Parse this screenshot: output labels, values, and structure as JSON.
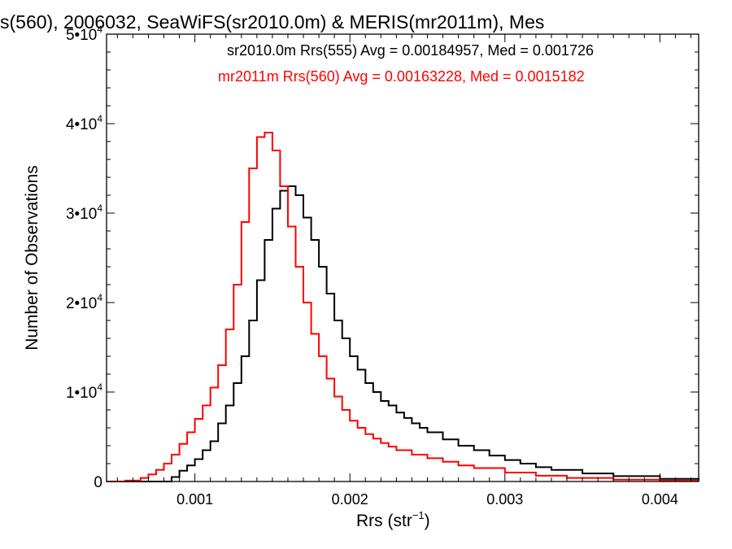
{
  "chart_data": {
    "type": "line",
    "step": true,
    "title": "s(560), 2006032, SeaWiFS(sr2010.0m) & MERIS(mr2011m), Mes",
    "xlabel": {
      "text": "Rrs (str",
      "sup": "−1",
      "close": ")"
    },
    "ylabel": "Number of Observations",
    "xlim": [
      0.00043,
      0.00425
    ],
    "ylim": [
      0,
      50000
    ],
    "x_ticks": [
      {
        "value": 0.001,
        "label": "0.001"
      },
      {
        "value": 0.002,
        "label": "0.002"
      },
      {
        "value": 0.003,
        "label": "0.003"
      },
      {
        "value": 0.004,
        "label": "0.004"
      }
    ],
    "y_ticks": [
      {
        "value": 0,
        "label": "0",
        "exp": ""
      },
      {
        "value": 10000,
        "label": "1•10",
        "exp": "4"
      },
      {
        "value": 20000,
        "label": "2•10",
        "exp": "4"
      },
      {
        "value": 30000,
        "label": "3•10",
        "exp": "4"
      },
      {
        "value": 40000,
        "label": "4•10",
        "exp": "4"
      },
      {
        "value": 50000,
        "label": "5•10",
        "exp": "4"
      }
    ],
    "legend": [
      {
        "text": "sr2010.0m Rrs(555) Avg = 0.00184957, Med = 0.001726",
        "color": "#000000"
      },
      {
        "text": "mr2011m Rrs(560) Avg = 0.00163228, Med = 0.0015182",
        "color": "#ff0000"
      }
    ],
    "series": [
      {
        "color": "#000000",
        "x": [
          0.00043,
          0.0006,
          0.00075,
          0.0008,
          0.00085,
          0.0009,
          0.00095,
          0.001,
          0.00105,
          0.0011,
          0.00115,
          0.0012,
          0.00125,
          0.0013,
          0.00135,
          0.0014,
          0.00145,
          0.0015,
          0.00155,
          0.0016,
          0.00165,
          0.0017,
          0.00175,
          0.0018,
          0.00185,
          0.0019,
          0.00195,
          0.002,
          0.00205,
          0.0021,
          0.00215,
          0.0022,
          0.00225,
          0.0023,
          0.00235,
          0.0024,
          0.00245,
          0.0025,
          0.0026,
          0.0027,
          0.0028,
          0.0029,
          0.003,
          0.0031,
          0.0032,
          0.0033,
          0.0035,
          0.0037,
          0.004,
          0.00425
        ],
        "y": [
          0,
          0,
          0,
          0,
          500,
          1200,
          1800,
          2500,
          3500,
          4500,
          6500,
          8500,
          11000,
          14000,
          18000,
          22500,
          27000,
          30500,
          32500,
          33000,
          32000,
          29500,
          27000,
          24000,
          21000,
          18000,
          16000,
          14000,
          12500,
          11000,
          10000,
          9000,
          8500,
          7700,
          7100,
          6500,
          6000,
          5500,
          4700,
          4000,
          3500,
          2900,
          2400,
          2000,
          1600,
          1300,
          900,
          600,
          300,
          100
        ]
      },
      {
        "color": "#ff0000",
        "x": [
          0.00043,
          0.00055,
          0.00065,
          0.0007,
          0.00075,
          0.0008,
          0.00085,
          0.0009,
          0.00095,
          0.001,
          0.00105,
          0.0011,
          0.00115,
          0.0012,
          0.00125,
          0.0013,
          0.00135,
          0.0014,
          0.00145,
          0.0015,
          0.00155,
          0.0016,
          0.00165,
          0.0017,
          0.00175,
          0.0018,
          0.00185,
          0.0019,
          0.00195,
          0.002,
          0.00205,
          0.0021,
          0.00215,
          0.0022,
          0.00225,
          0.0023,
          0.0024,
          0.0025,
          0.0026,
          0.0027,
          0.0028,
          0.003,
          0.0032,
          0.0034,
          0.0037,
          0.004,
          0.00425
        ],
        "y": [
          0,
          100,
          400,
          800,
          1300,
          2000,
          3000,
          4200,
          5500,
          7000,
          8500,
          10500,
          13000,
          17000,
          22000,
          29000,
          35000,
          38500,
          39000,
          37000,
          33000,
          28500,
          24000,
          20000,
          16500,
          14000,
          11500,
          9500,
          8000,
          6800,
          6000,
          5300,
          4800,
          4300,
          3900,
          3500,
          3000,
          2600,
          2200,
          1800,
          1500,
          1000,
          650,
          400,
          200,
          100,
          50
        ]
      }
    ]
  }
}
